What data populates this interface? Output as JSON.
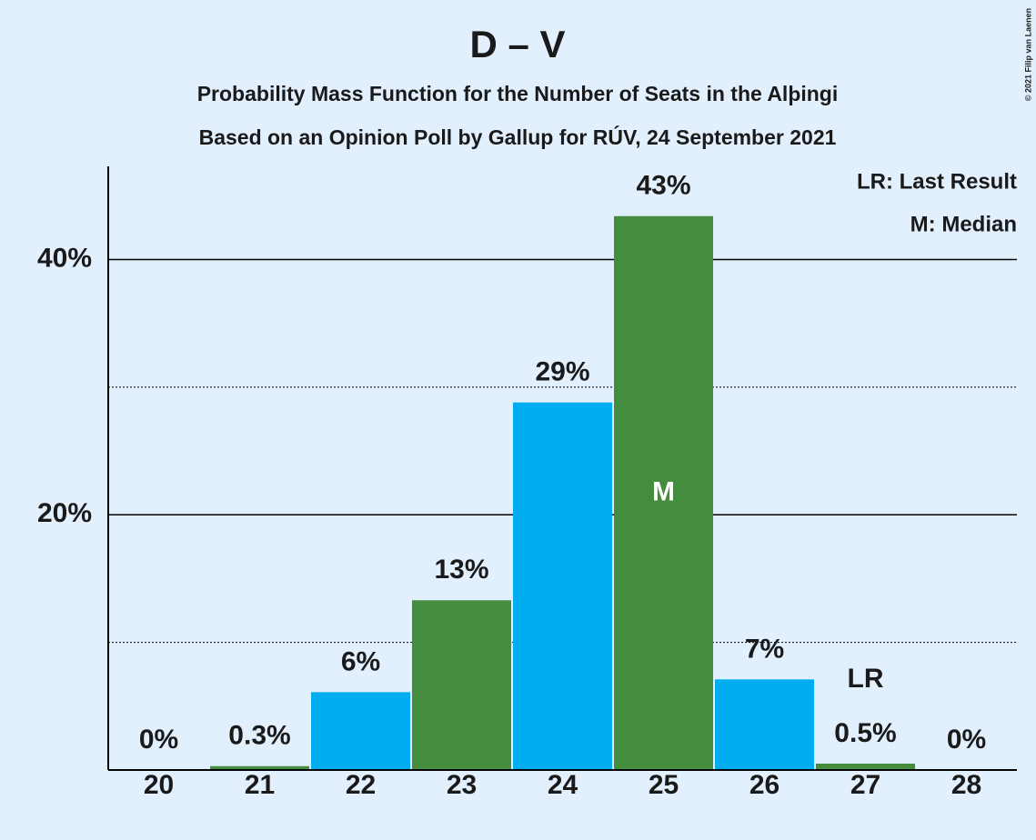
{
  "chart_data": {
    "type": "bar",
    "title": "D – V",
    "subtitle": [
      "Probability Mass Function for the Number of Seats in the Alþingi",
      "Based on an Opinion Poll by Gallup for RÚV, 24 September 2021"
    ],
    "categories": [
      "20",
      "21",
      "22",
      "23",
      "24",
      "25",
      "26",
      "27",
      "28"
    ],
    "values": [
      0,
      0.3,
      6.1,
      13.3,
      28.8,
      43.4,
      7.1,
      0.5,
      0
    ],
    "value_labels": [
      "0%",
      "0.3%",
      "6%",
      "13%",
      "29%",
      "43%",
      "7%",
      "0.5%",
      "0%"
    ],
    "colors": [
      "#00aeef",
      "#458d3e",
      "#00aeef",
      "#458d3e",
      "#00aeef",
      "#458d3e",
      "#00aeef",
      "#458d3e",
      "#00aeef"
    ],
    "ylim": [
      0,
      47.3
    ],
    "yticks": [
      {
        "value": 20,
        "label": "20%"
      },
      {
        "value": 40,
        "label": "40%"
      }
    ],
    "minor_yticks": [
      10,
      30
    ],
    "grid": true,
    "annotations": [
      {
        "label": "M",
        "category": "25"
      },
      {
        "label": "LR",
        "category": "27"
      }
    ],
    "legend": [
      "LR: Last Result",
      "M: Median"
    ],
    "copyright": "© 2021 Filip van Laenen"
  }
}
